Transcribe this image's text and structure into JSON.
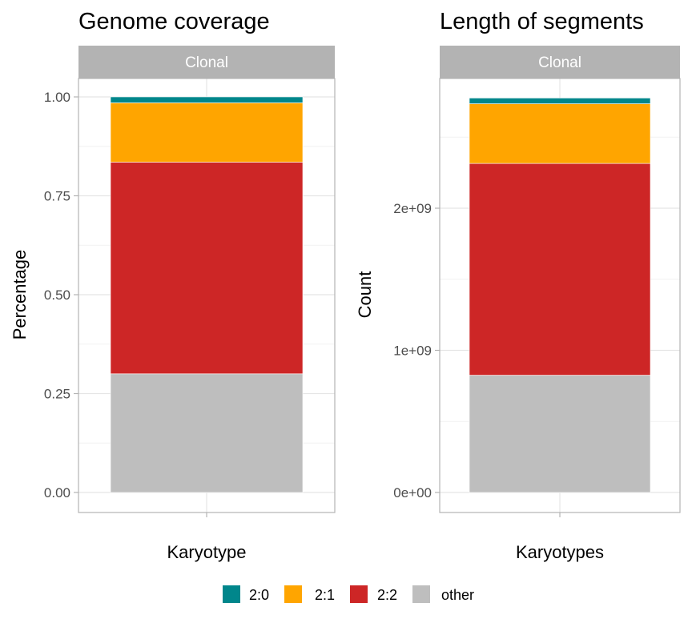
{
  "chart_data": [
    {
      "type": "bar",
      "stacked": true,
      "title": "Genome coverage",
      "facet": "Clonal",
      "xlabel": "Karyotype",
      "ylabel": "Percentage",
      "ylim": [
        0,
        1
      ],
      "yticks": [
        0,
        0.25,
        0.5,
        0.75,
        1
      ],
      "ytick_labels": [
        "0.00",
        "0.25",
        "0.50",
        "0.75",
        "1.00"
      ],
      "series": [
        {
          "name": "other",
          "values": [
            0.3
          ]
        },
        {
          "name": "2:2",
          "values": [
            0.535
          ]
        },
        {
          "name": "2:1",
          "values": [
            0.15
          ]
        },
        {
          "name": "2:0",
          "values": [
            0.015
          ]
        }
      ],
      "grid": true
    },
    {
      "type": "bar",
      "stacked": true,
      "title": "Length of segments",
      "facet": "Clonal",
      "xlabel": "Karyotypes",
      "ylabel": "Count",
      "ylim": [
        0,
        2800000000
      ],
      "yticks": [
        0,
        1000000000,
        2000000000
      ],
      "ytick_labels": [
        "0e+00",
        "1e+09",
        "2e+09"
      ],
      "series": [
        {
          "name": "other",
          "values": [
            825000000
          ]
        },
        {
          "name": "2:2",
          "values": [
            1490000000
          ]
        },
        {
          "name": "2:1",
          "values": [
            420000000
          ]
        },
        {
          "name": "2:0",
          "values": [
            40000000
          ]
        }
      ],
      "grid": true
    }
  ],
  "legend": {
    "position": "bottom",
    "items": [
      {
        "label": "2:0",
        "color": "#00868B"
      },
      {
        "label": "2:1",
        "color": "#FFA500"
      },
      {
        "label": "2:2",
        "color": "#CD2626"
      },
      {
        "label": "other",
        "color": "#BEBEBE"
      }
    ]
  },
  "colors": {
    "2:0": "#00868B",
    "2:1": "#FFA500",
    "2:2": "#CD2626",
    "other": "#BEBEBE",
    "strip": "#B3B3B3"
  }
}
